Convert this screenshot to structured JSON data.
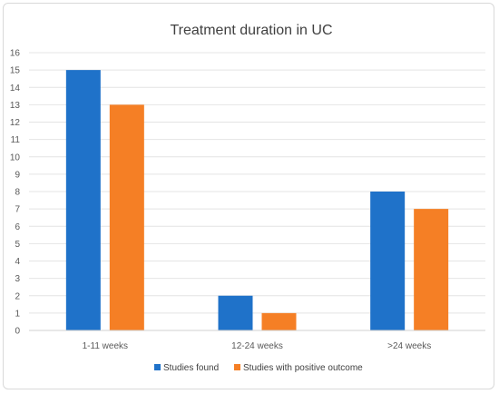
{
  "chart_data": {
    "type": "bar",
    "title": "Treatment duration in UC",
    "categories": [
      "1-11 weeks",
      "12-24 weeks",
      ">24 weeks"
    ],
    "series": [
      {
        "name": "Studies found",
        "values": [
          15,
          2,
          8
        ],
        "color": "#1f72c9"
      },
      {
        "name": "Studies with positive outcome",
        "values": [
          13,
          1,
          7
        ],
        "color": "#f57f25"
      }
    ],
    "xlabel": "",
    "ylabel": "",
    "ylim": [
      0,
      16
    ],
    "yticks": [
      "0",
      "1",
      "2",
      "3",
      "4",
      "5",
      "6",
      "7",
      "8",
      "9",
      "10",
      "11",
      "12",
      "13",
      "14",
      "15",
      "16"
    ],
    "grid": true,
    "legend_position": "bottom"
  }
}
